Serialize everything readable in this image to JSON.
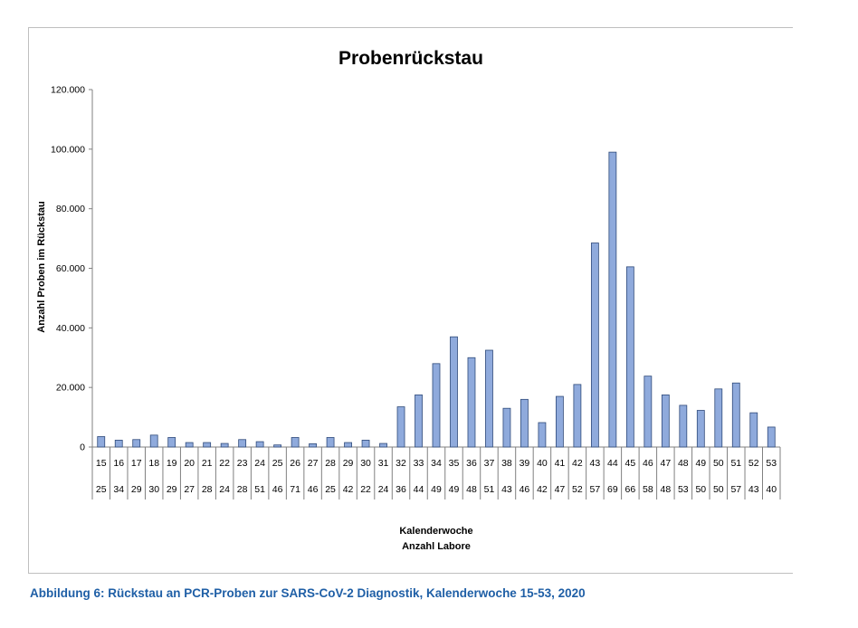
{
  "chart_data": {
    "type": "bar",
    "title": "Probenrückstau",
    "ylabel": "Anzahl Proben im Rückstau",
    "xlabel": "Kalenderwoche",
    "xlabel2": "Anzahl Labore",
    "ylim": [
      0,
      120000
    ],
    "yticks": [
      "0",
      "20.000",
      "40.000",
      "60.000",
      "80.000",
      "100.000",
      "120.000"
    ],
    "ytick_values": [
      0,
      20000,
      40000,
      60000,
      80000,
      100000,
      120000
    ],
    "categories": [
      "15",
      "16",
      "17",
      "18",
      "19",
      "20",
      "21",
      "22",
      "23",
      "24",
      "25",
      "26",
      "27",
      "28",
      "29",
      "30",
      "31",
      "32",
      "33",
      "34",
      "35",
      "36",
      "37",
      "38",
      "39",
      "40",
      "41",
      "42",
      "43",
      "44",
      "45",
      "46",
      "47",
      "48",
      "49",
      "50",
      "51",
      "52",
      "53"
    ],
    "labs": [
      "25",
      "34",
      "29",
      "30",
      "29",
      "27",
      "28",
      "24",
      "28",
      "51",
      "46",
      "71",
      "46",
      "25",
      "42",
      "22",
      "24",
      "36",
      "44",
      "49",
      "49",
      "48",
      "51",
      "43",
      "46",
      "42",
      "47",
      "52",
      "57",
      "69",
      "66",
      "58",
      "48",
      "53",
      "50",
      "50",
      "57",
      "43",
      "40"
    ],
    "values": [
      3500,
      2300,
      2500,
      4000,
      3200,
      1500,
      1500,
      1200,
      2500,
      1800,
      700,
      3200,
      1100,
      3200,
      1500,
      2300,
      1200,
      13500,
      17500,
      28000,
      37000,
      30000,
      32500,
      13000,
      16000,
      8200,
      17000,
      21000,
      68500,
      99000,
      60500,
      23800,
      17500,
      14000,
      12300,
      19500,
      21500,
      11500,
      6700
    ],
    "bar_color": "#8faadc",
    "bar_edge": "#2f4a7a",
    "grid": false,
    "legend": "none"
  },
  "caption": "Abbildung 6: Rückstau an PCR-Proben zur SARS-CoV-2 Diagnostik, Kalenderwoche 15-53, 2020"
}
